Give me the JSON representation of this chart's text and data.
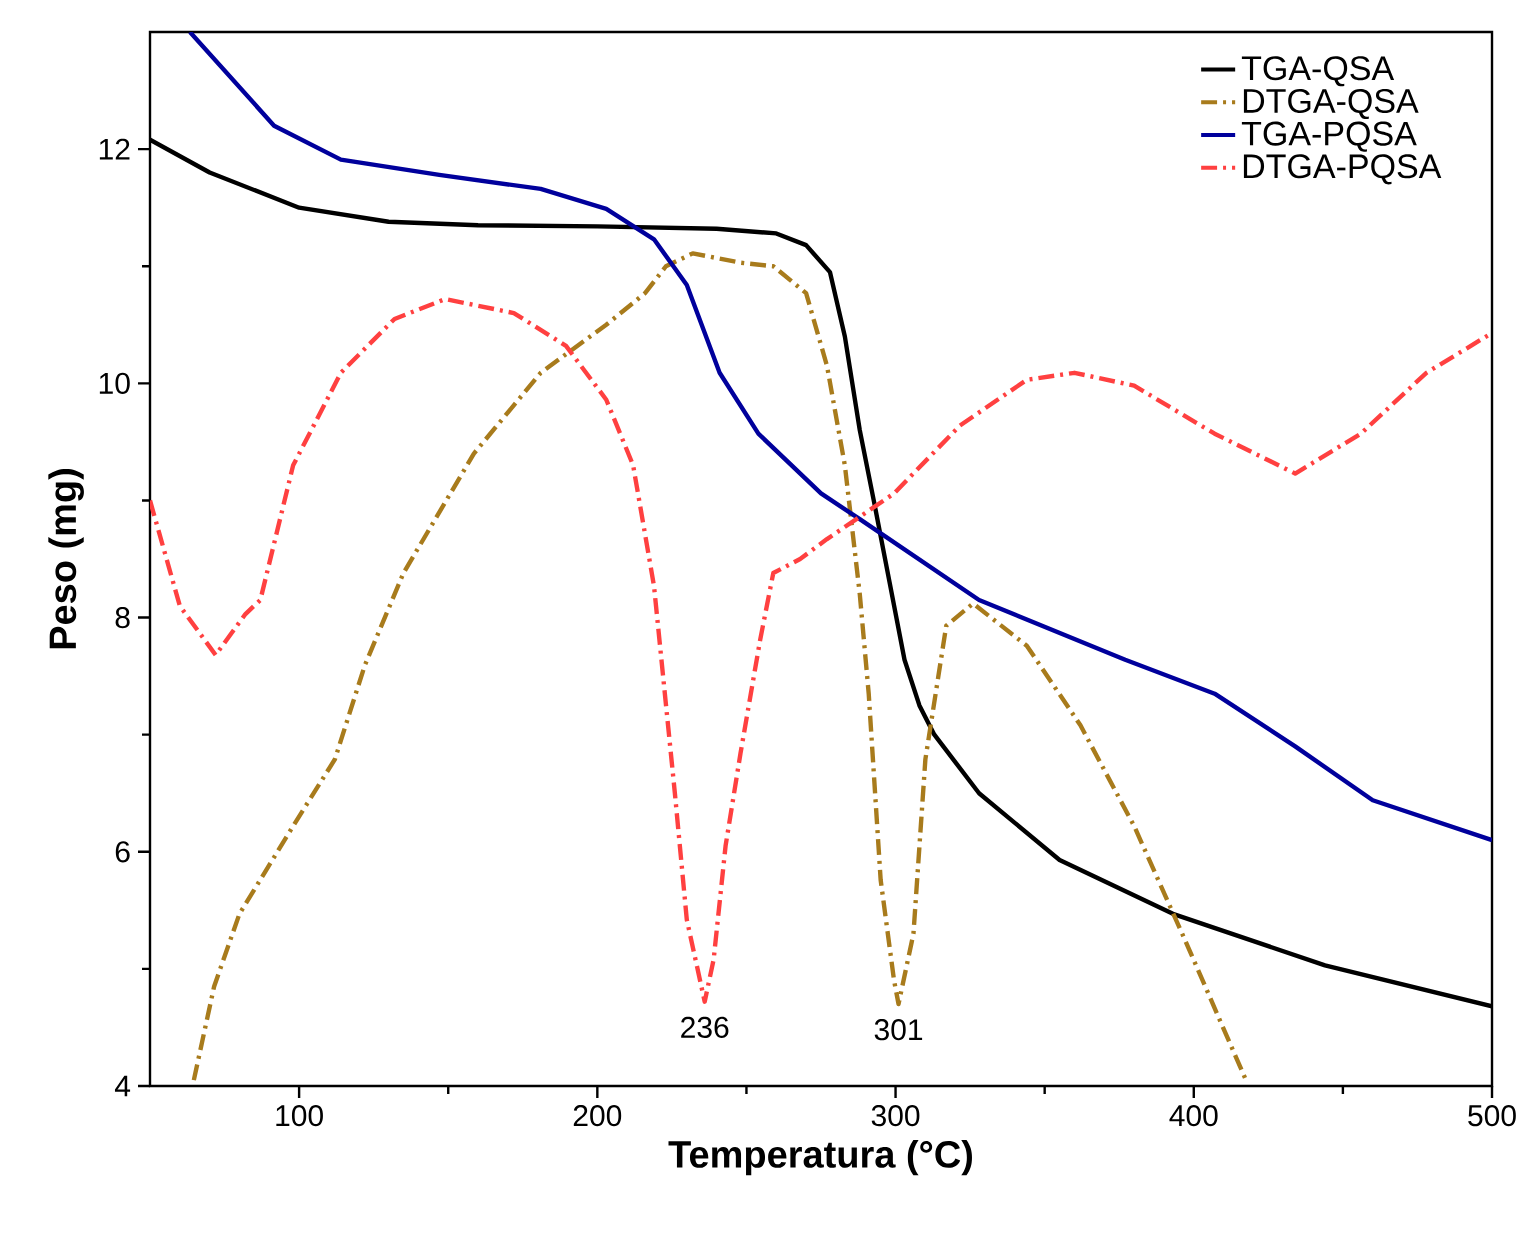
{
  "chart_data": {
    "type": "line",
    "xlabel": "Temperatura (°C)",
    "ylabel": "Peso (mg)",
    "xlim": [
      50,
      500
    ],
    "ylim": [
      4,
      13
    ],
    "xticks": [
      100,
      200,
      300,
      400,
      500
    ],
    "yticks": [
      4,
      6,
      8,
      10,
      12
    ],
    "legend": "top right",
    "series": [
      {
        "name": "TGA-QSA",
        "color": "#000000",
        "line_style": "solid",
        "x": [
          50,
          70,
          100,
          130,
          160,
          200,
          240,
          260,
          270,
          278,
          283,
          288,
          293,
          298,
          303,
          308,
          313,
          328,
          355,
          393,
          444,
          500
        ],
        "values": [
          12.08,
          11.8,
          11.5,
          11.38,
          11.35,
          11.34,
          11.32,
          11.28,
          11.18,
          10.95,
          10.4,
          9.6,
          8.96,
          8.3,
          7.64,
          7.25,
          7.0,
          6.5,
          5.93,
          5.47,
          5.03,
          4.68
        ]
      },
      {
        "name": "DTGA-QSA",
        "color": "#a87b1c",
        "line_style": "dashdot",
        "x": [
          64.7,
          71.5,
          80,
          98,
          112,
          122,
          135,
          158.6,
          181,
          203,
          216,
          223,
          232,
          248,
          259,
          270,
          277,
          283,
          288,
          291,
          295,
          299.5,
          301,
          306,
          310,
          317,
          326,
          344,
          362,
          380,
          397,
          417.5
        ],
        "values": [
          4.05,
          4.85,
          5.47,
          6.22,
          6.79,
          7.59,
          8.38,
          9.4,
          10.09,
          10.5,
          10.77,
          11.0,
          11.11,
          11.03,
          11.0,
          10.77,
          10.15,
          9.3,
          8.2,
          7.35,
          5.76,
          4.9,
          4.7,
          5.3,
          6.79,
          7.93,
          8.12,
          7.76,
          7.08,
          6.22,
          5.25,
          4.05
        ]
      },
      {
        "name": "TGA-PQSA",
        "color": "#00009c",
        "line_style": "solid",
        "x": [
          63.4,
          91.6,
          114,
          147,
          181,
          203,
          219,
          230,
          241,
          254,
          275,
          288,
          328,
          377,
          407,
          434,
          460,
          500
        ],
        "values": [
          13.0,
          12.2,
          11.91,
          11.78,
          11.66,
          11.49,
          11.23,
          10.84,
          10.09,
          9.57,
          9.06,
          8.84,
          8.15,
          7.64,
          7.35,
          6.9,
          6.44,
          6.1
        ]
      },
      {
        "name": "DTGA-PQSA",
        "color": "#ff4040",
        "line_style": "dashdot",
        "x": [
          50,
          60,
          72,
          82,
          87,
          98,
          114,
          132,
          149,
          172,
          189.5,
          203,
          212,
          219,
          226,
          230,
          236,
          239,
          243,
          248,
          254.6,
          259,
          268,
          277,
          299.5,
          321.6,
          344,
          360,
          380,
          407,
          434,
          456,
          478,
          500
        ],
        "values": [
          9.0,
          8.1,
          7.68,
          8.03,
          8.15,
          9.3,
          10.09,
          10.55,
          10.72,
          10.6,
          10.32,
          9.86,
          9.3,
          8.27,
          6.5,
          5.42,
          4.72,
          5.08,
          6.05,
          6.84,
          7.81,
          8.38,
          8.5,
          8.67,
          9.06,
          9.64,
          10.03,
          10.09,
          9.98,
          9.57,
          9.23,
          9.57,
          10.09,
          10.43
        ]
      }
    ],
    "annotations": [
      {
        "text": "236",
        "x": 236,
        "y": 4.72
      },
      {
        "text": "301",
        "x": 301,
        "y": 4.7
      }
    ]
  }
}
